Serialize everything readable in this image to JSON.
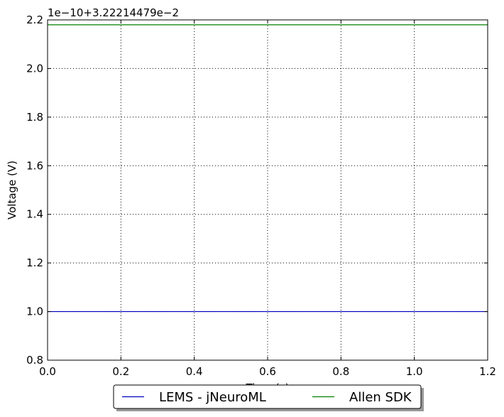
{
  "chart_data": {
    "type": "line",
    "offset_label": "1e−10+3.22214479e−2",
    "xlabel": "Time (s)",
    "ylabel": "Voltage (V)",
    "xlim": [
      0.0,
      1.2
    ],
    "ylim": [
      0.8,
      2.2
    ],
    "x_ticks": [
      "0.0",
      "0.2",
      "0.4",
      "0.6",
      "0.8",
      "1.0",
      "1.2"
    ],
    "y_ticks": [
      "0.8",
      "1.0",
      "1.2",
      "1.4",
      "1.6",
      "1.8",
      "2.0",
      "2.2"
    ],
    "grid": true,
    "legend_position": "bottom-center",
    "series": [
      {
        "name": "LEMS - jNeuroML",
        "color": "#0000bf",
        "x": [
          0.0,
          1.2
        ],
        "y": [
          1.0,
          1.0
        ]
      },
      {
        "name": "Allen SDK",
        "color": "#008000",
        "x": [
          0.0,
          1.2
        ],
        "y": [
          2.18,
          2.18
        ]
      }
    ]
  }
}
